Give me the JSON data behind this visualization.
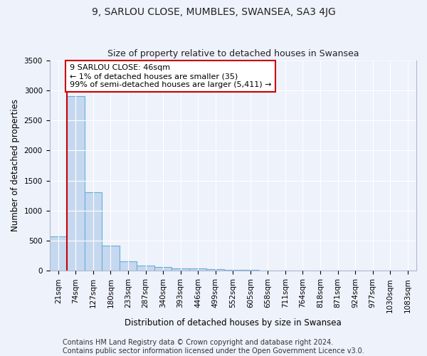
{
  "title": "9, SARLOU CLOSE, MUMBLES, SWANSEA, SA3 4JG",
  "subtitle": "Size of property relative to detached houses in Swansea",
  "xlabel": "Distribution of detached houses by size in Swansea",
  "ylabel": "Number of detached properties",
  "footer_line1": "Contains HM Land Registry data © Crown copyright and database right 2024.",
  "footer_line2": "Contains public sector information licensed under the Open Government Licence v3.0.",
  "categories": [
    "21sqm",
    "74sqm",
    "127sqm",
    "180sqm",
    "233sqm",
    "287sqm",
    "340sqm",
    "393sqm",
    "446sqm",
    "499sqm",
    "552sqm",
    "605sqm",
    "658sqm",
    "711sqm",
    "764sqm",
    "818sqm",
    "871sqm",
    "924sqm",
    "977sqm",
    "1030sqm",
    "1083sqm"
  ],
  "bar_values": [
    570,
    2900,
    1310,
    415,
    155,
    90,
    60,
    45,
    35,
    25,
    15,
    10,
    7,
    5,
    4,
    3,
    2,
    2,
    1,
    1,
    0
  ],
  "bar_color": "#c5d8ef",
  "bar_edge_color": "#6aaed6",
  "highlight_line_color": "#cc0000",
  "annotation_text": "9 SARLOU CLOSE: 46sqm\n← 1% of detached houses are smaller (35)\n99% of semi-detached houses are larger (5,411) →",
  "annotation_box_color": "white",
  "annotation_box_edge_color": "#cc0000",
  "ylim": [
    0,
    3500
  ],
  "background_color": "#eef2fb",
  "plot_background": "#eef2fb",
  "grid_color": "white",
  "title_fontsize": 10,
  "subtitle_fontsize": 9,
  "axis_label_fontsize": 8.5,
  "tick_fontsize": 7.5,
  "annotation_fontsize": 8,
  "footer_fontsize": 7
}
